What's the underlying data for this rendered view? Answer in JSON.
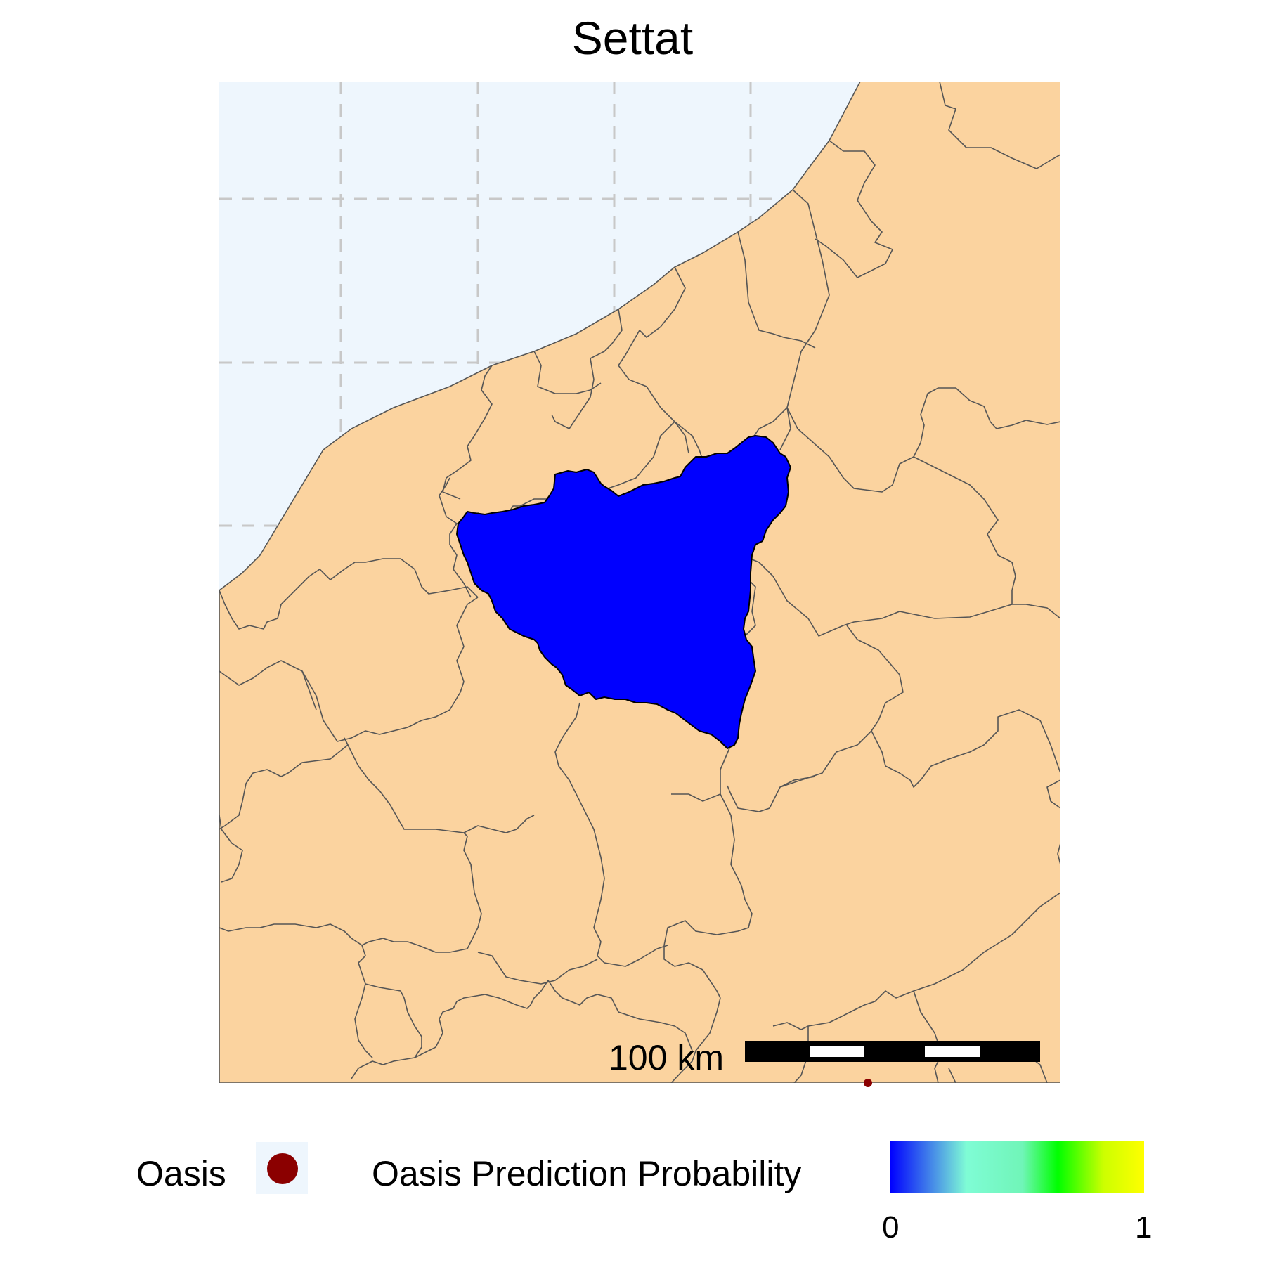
{
  "title": "Settat",
  "scalebar": {
    "label": "100 km"
  },
  "legend": {
    "points": {
      "label": "Oasis",
      "color": "#8b0000"
    },
    "colorbar": {
      "label": "Oasis Prediction Probability",
      "min_label": "0",
      "max_label": "1"
    }
  },
  "colors": {
    "sea": "#eef6fd",
    "land": "#fbd39f",
    "region_fill": "#0000ff",
    "boundary": "#555555",
    "graticule": "#c8c8c8"
  }
}
